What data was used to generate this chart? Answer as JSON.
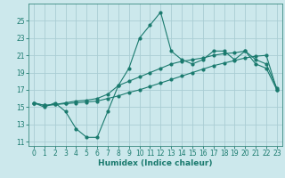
{
  "xlabel": "Humidex (Indice chaleur)",
  "background_color": "#cce8ec",
  "grid_color": "#aacdd4",
  "line_color": "#1a7a6e",
  "spine_color": "#3a8a80",
  "xlim": [
    -0.5,
    23.5
  ],
  "ylim": [
    10.5,
    27
  ],
  "yticks": [
    11,
    13,
    15,
    17,
    19,
    21,
    23,
    25
  ],
  "xticks": [
    0,
    1,
    2,
    3,
    4,
    5,
    6,
    7,
    8,
    9,
    10,
    11,
    12,
    13,
    14,
    15,
    16,
    17,
    18,
    19,
    20,
    21,
    22,
    23
  ],
  "line1_x": [
    0,
    1,
    2,
    3,
    4,
    5,
    6,
    7,
    8,
    9,
    10,
    11,
    12,
    13,
    14,
    15,
    16,
    17,
    18,
    19,
    20,
    21,
    22,
    23
  ],
  "line1_y": [
    15.5,
    15.0,
    15.5,
    14.5,
    12.5,
    11.5,
    11.5,
    14.5,
    17.5,
    19.5,
    23.0,
    24.5,
    26.0,
    21.5,
    20.5,
    20.0,
    20.5,
    21.5,
    21.5,
    20.5,
    21.5,
    20.0,
    19.5,
    17.0
  ],
  "line2_x": [
    0,
    1,
    2,
    3,
    4,
    5,
    6,
    7,
    8,
    9,
    10,
    11,
    12,
    13,
    14,
    15,
    16,
    17,
    18,
    19,
    20,
    21,
    22,
    23
  ],
  "line2_y": [
    15.5,
    15.2,
    15.3,
    15.4,
    15.5,
    15.6,
    15.7,
    16.0,
    16.3,
    16.7,
    17.0,
    17.4,
    17.8,
    18.2,
    18.6,
    19.0,
    19.4,
    19.8,
    20.1,
    20.4,
    20.7,
    20.9,
    21.0,
    17.0
  ],
  "line3_x": [
    0,
    1,
    2,
    3,
    4,
    5,
    6,
    7,
    8,
    9,
    10,
    11,
    12,
    13,
    14,
    15,
    16,
    17,
    18,
    19,
    20,
    21,
    22,
    23
  ],
  "line3_y": [
    15.5,
    15.2,
    15.3,
    15.5,
    15.7,
    15.8,
    16.0,
    16.5,
    17.5,
    18.0,
    18.5,
    19.0,
    19.5,
    20.0,
    20.3,
    20.5,
    20.7,
    21.0,
    21.2,
    21.3,
    21.5,
    20.5,
    20.0,
    17.2
  ],
  "tick_fontsize": 5.5,
  "label_fontsize": 6.5
}
